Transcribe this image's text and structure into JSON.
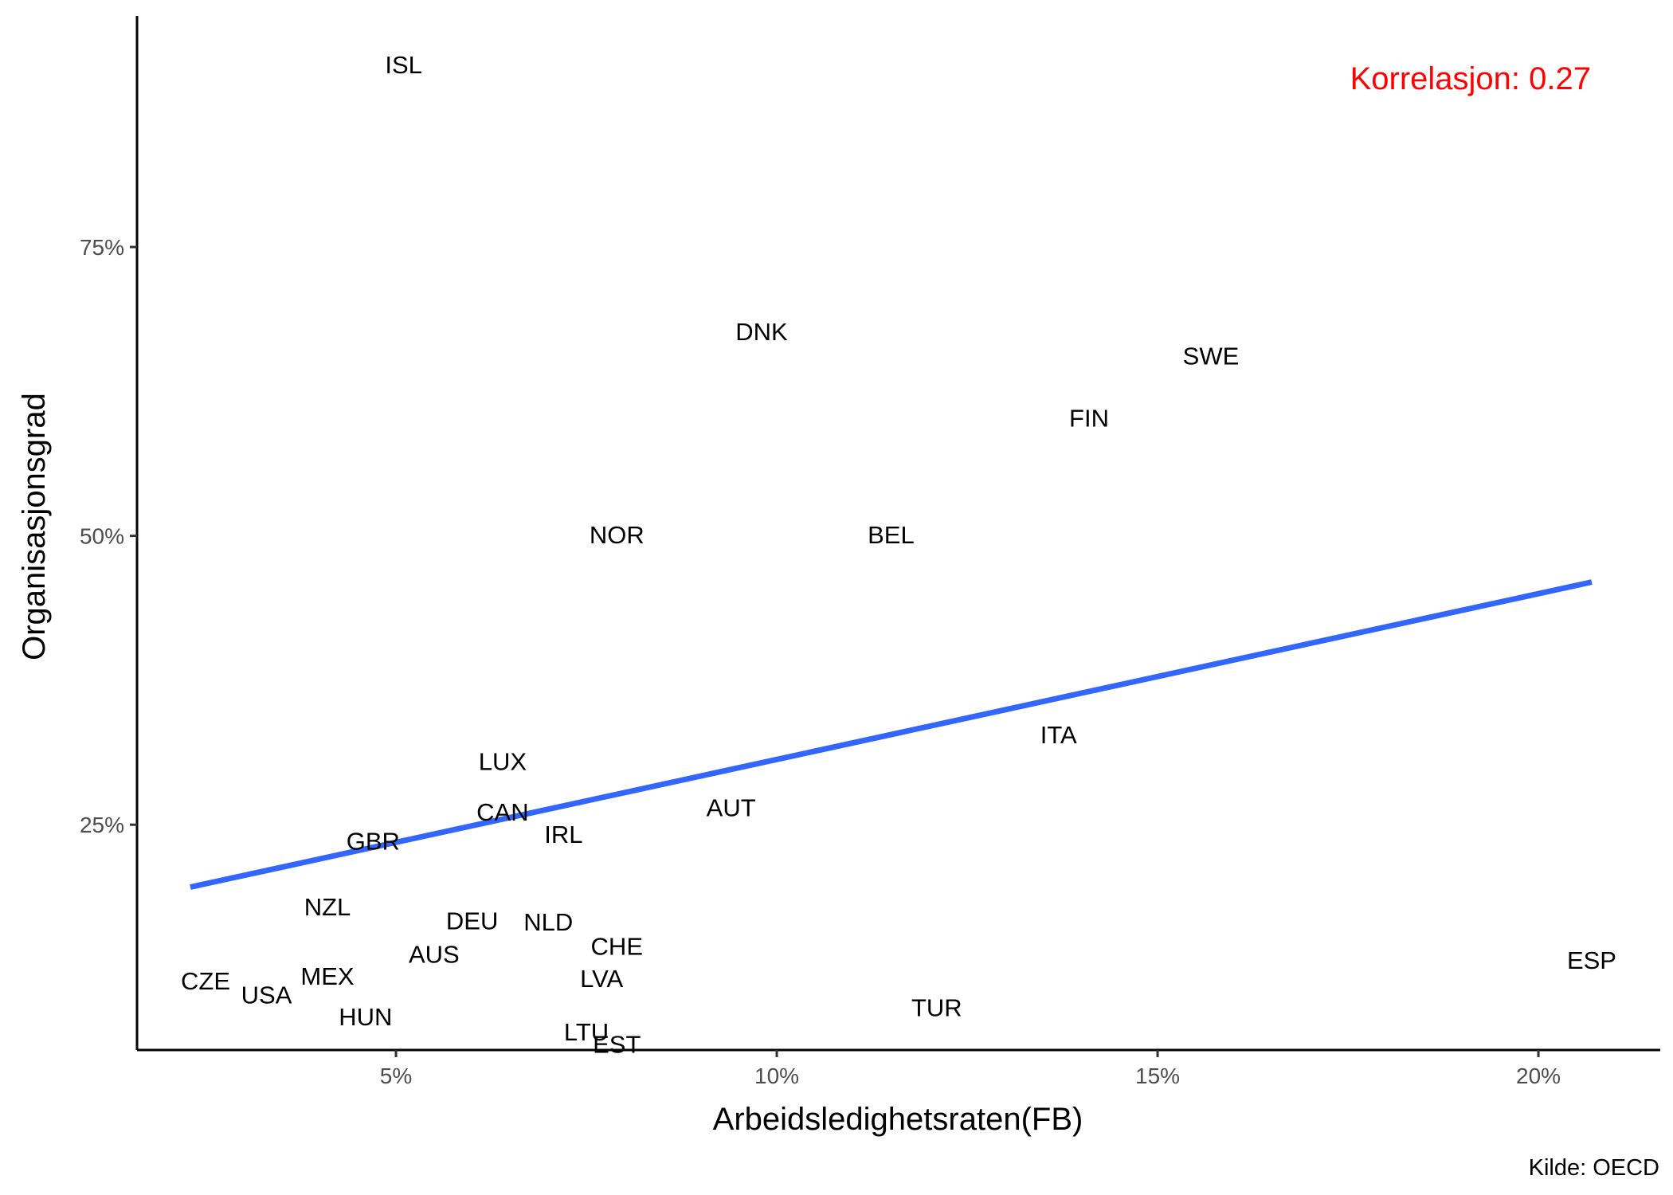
{
  "chart_data": {
    "type": "scatter",
    "xlabel": "Arbeidsledighetsraten(FB)",
    "ylabel": "Organisasjonsgrad",
    "caption": "Kilde: OECD",
    "annotation": "Korrelasjon: 0.27",
    "colors": {
      "annotation": "#ff0000",
      "regression_line": "#3366ff",
      "axis": "#000000",
      "tick_label": "#4d4d4d",
      "point_label": "#000000"
    },
    "xlim": [
      1.6,
      21.6
    ],
    "ylim": [
      5.5,
      95.0
    ],
    "x_ticks": [
      5,
      10,
      15,
      20
    ],
    "x_tick_labels": [
      "5%",
      "10%",
      "15%",
      "20%"
    ],
    "y_ticks": [
      25,
      50,
      75
    ],
    "y_tick_labels": [
      "25%",
      "50%",
      "75%"
    ],
    "grid": false,
    "points": [
      {
        "label": "ISL",
        "x": 5.1,
        "y": 90.8
      },
      {
        "label": "DNK",
        "x": 9.8,
        "y": 67.7
      },
      {
        "label": "SWE",
        "x": 15.7,
        "y": 65.6
      },
      {
        "label": "FIN",
        "x": 14.1,
        "y": 60.2
      },
      {
        "label": "NOR",
        "x": 7.9,
        "y": 50.1
      },
      {
        "label": "BEL",
        "x": 11.5,
        "y": 50.1
      },
      {
        "label": "ITA",
        "x": 13.7,
        "y": 32.8
      },
      {
        "label": "LUX",
        "x": 6.4,
        "y": 30.5
      },
      {
        "label": "AUT",
        "x": 9.4,
        "y": 26.5
      },
      {
        "label": "CAN",
        "x": 6.4,
        "y": 26.1
      },
      {
        "label": "IRL",
        "x": 7.2,
        "y": 24.2
      },
      {
        "label": "GBR",
        "x": 4.7,
        "y": 23.6
      },
      {
        "label": "NZL",
        "x": 4.1,
        "y": 17.9
      },
      {
        "label": "DEU",
        "x": 6.0,
        "y": 16.7
      },
      {
        "label": "NLD",
        "x": 7.0,
        "y": 16.6
      },
      {
        "label": "CHE",
        "x": 7.9,
        "y": 14.5
      },
      {
        "label": "AUS",
        "x": 5.5,
        "y": 13.8
      },
      {
        "label": "LVA",
        "x": 7.7,
        "y": 11.7
      },
      {
        "label": "MEX",
        "x": 4.1,
        "y": 11.9
      },
      {
        "label": "CZE",
        "x": 2.5,
        "y": 11.5
      },
      {
        "label": "USA",
        "x": 3.3,
        "y": 10.3
      },
      {
        "label": "HUN",
        "x": 4.6,
        "y": 8.4
      },
      {
        "label": "TUR",
        "x": 12.1,
        "y": 9.2
      },
      {
        "label": "ESP",
        "x": 20.7,
        "y": 13.3
      },
      {
        "label": "LTU",
        "x": 7.5,
        "y": 7.1
      },
      {
        "label": "EST",
        "x": 7.9,
        "y": 6.0
      }
    ],
    "regression": {
      "x": [
        2.3,
        20.7
      ],
      "y": [
        19.6,
        46.0
      ]
    }
  }
}
